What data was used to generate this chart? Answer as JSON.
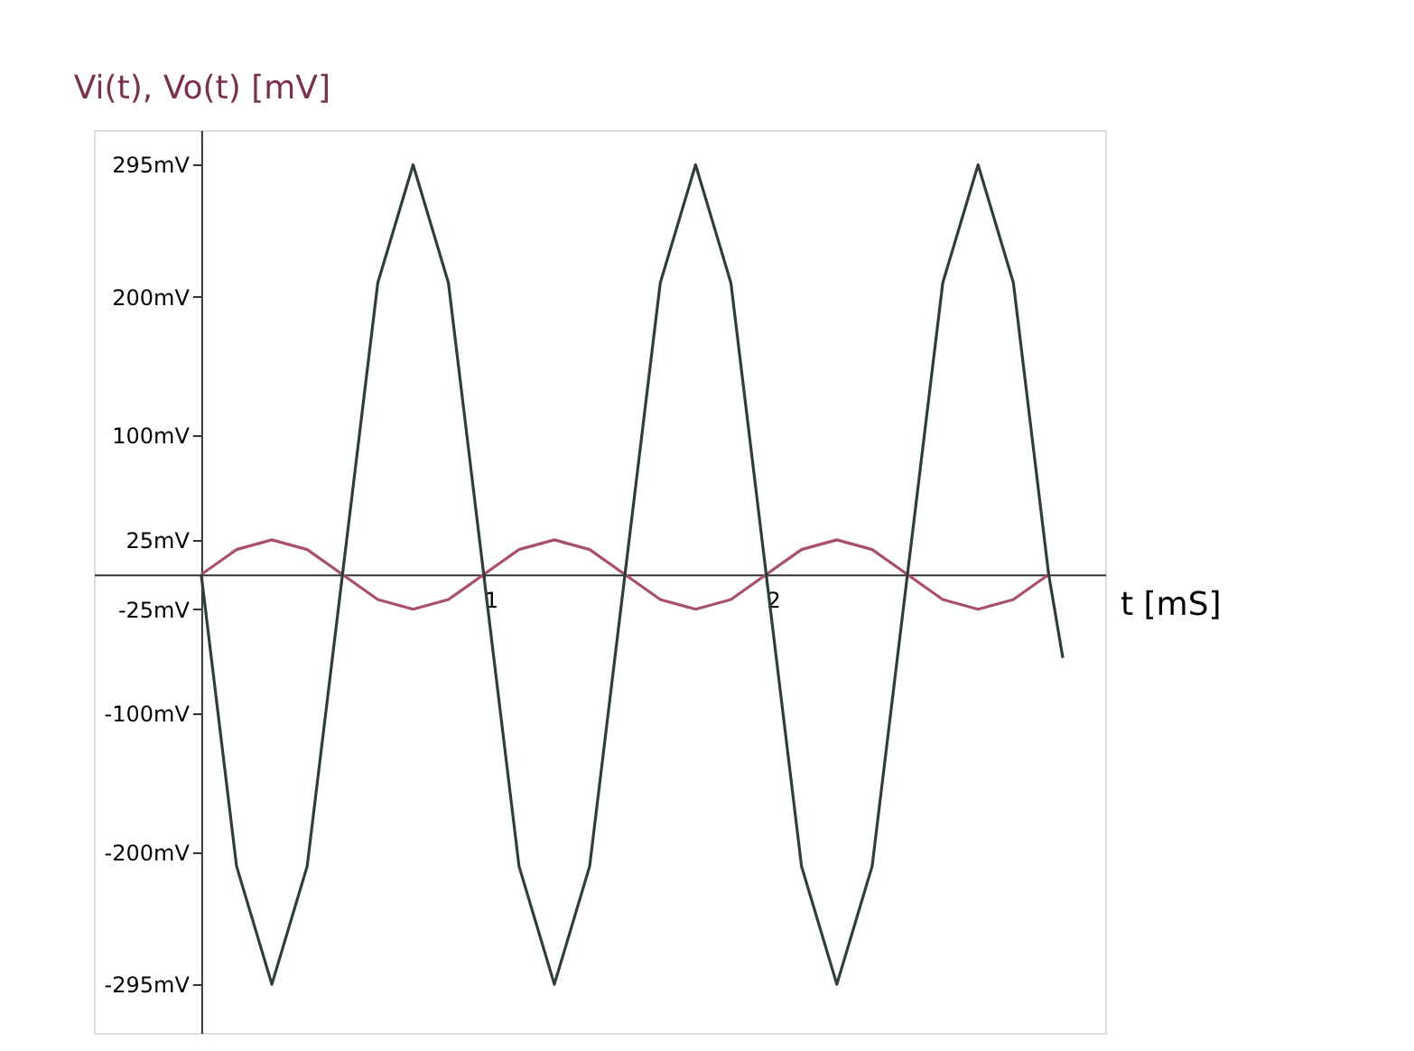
{
  "chart_data": {
    "type": "line",
    "ylabel": "Vi(t), Vo(t) [mV]",
    "xlabel": "t [mS]",
    "x": [
      0,
      0.125,
      0.25,
      0.375,
      0.5,
      0.625,
      0.75,
      0.875,
      1,
      1.125,
      1.25,
      1.375,
      1.5,
      1.625,
      1.75,
      1.875,
      2,
      2.125,
      2.25,
      2.375,
      2.5,
      2.625,
      2.75,
      2.875,
      3
    ],
    "series": [
      {
        "color": "#a8506a",
        "values": [
          0,
          18,
          25,
          18,
          0,
          -18,
          -25,
          -18,
          0,
          18,
          25,
          18,
          0,
          -18,
          -25,
          -18,
          0,
          18,
          25,
          18,
          0,
          -18,
          -25,
          -18,
          0
        ]
      },
      {
        "color": "#2f3f35",
        "x": [
          0,
          0.125,
          0.25,
          0.375,
          0.5,
          0.625,
          0.75,
          0.875,
          1,
          1.125,
          1.25,
          1.375,
          1.5,
          1.625,
          1.75,
          1.875,
          2,
          2.125,
          2.25,
          2.375,
          2.5,
          2.625,
          2.75,
          2.875,
          3,
          3.05
        ],
        "values": [
          0,
          -210,
          -295,
          -210,
          0,
          210,
          295,
          210,
          0,
          -210,
          -295,
          -210,
          0,
          210,
          295,
          210,
          0,
          -210,
          -295,
          -210,
          0,
          210,
          295,
          210,
          0,
          -60
        ]
      }
    ],
    "xlim": [
      -0.38,
      3.2
    ],
    "xticks": [
      1,
      2
    ],
    "ylim": [
      -330,
      320
    ],
    "yticks": [
      {
        "value": 295,
        "label": "295mV"
      },
      {
        "value": 200,
        "label": "200mV"
      },
      {
        "value": 100,
        "label": "100mV"
      },
      {
        "value": 25,
        "label": "25mV"
      },
      {
        "value": -25,
        "label": "-25mV"
      },
      {
        "value": -100,
        "label": "-100mV"
      },
      {
        "value": -200,
        "label": "-200mV"
      },
      {
        "value": -295,
        "label": "-295mV"
      }
    ],
    "marker": "none",
    "line_style": "solid"
  }
}
